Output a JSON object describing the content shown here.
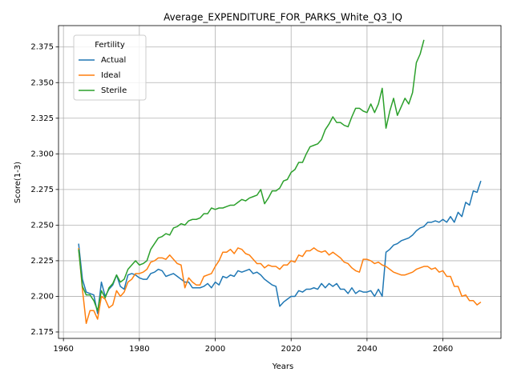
{
  "chart_data": {
    "type": "line",
    "title": "Average_EXPENDITURE_FOR_PARKS_White_Q3_IQ",
    "x_label": "Years",
    "y_label": "Score(1-3)",
    "legend_title": "Fertility",
    "legend": "upper left",
    "grid": true,
    "x": [
      1964,
      1965,
      1966,
      1967,
      1968,
      1969,
      1970,
      1971,
      1972,
      1973,
      1974,
      1975,
      1976,
      1977,
      1978,
      1979,
      1980,
      1981,
      1982,
      1983,
      1984,
      1985,
      1986,
      1987,
      1988,
      1989,
      1990,
      1991,
      1992,
      1993,
      1994,
      1995,
      1996,
      1997,
      1998,
      1999,
      2000,
      2001,
      2002,
      2003,
      2004,
      2005,
      2006,
      2007,
      2008,
      2009,
      2010,
      2011,
      2012,
      2013,
      2014,
      2015,
      2016,
      2017,
      2018,
      2019,
      2020,
      2021,
      2022,
      2023,
      2024,
      2025,
      2026,
      2027,
      2028,
      2029,
      2030,
      2031,
      2032,
      2033,
      2034,
      2035,
      2036,
      2037,
      2038,
      2039,
      2040,
      2041,
      2042,
      2043,
      2044,
      2045,
      2046,
      2047,
      2048,
      2049,
      2050,
      2051,
      2052,
      2053,
      2054,
      2055,
      2056,
      2057,
      2058,
      2059,
      2060,
      2061,
      2062,
      2063,
      2064,
      2065,
      2066,
      2067,
      2068,
      2069,
      2070
    ],
    "series": [
      {
        "name": "Actual",
        "color": "#1f77b4",
        "values": [
          2.237,
          2.212,
          2.203,
          2.202,
          2.201,
          2.188,
          2.21,
          2.2,
          2.205,
          2.208,
          2.215,
          2.207,
          2.205,
          2.215,
          2.216,
          2.215,
          2.213,
          2.212,
          2.212,
          2.216,
          2.217,
          2.219,
          2.218,
          2.214,
          2.215,
          2.216,
          2.214,
          2.212,
          2.21,
          2.21,
          2.206,
          2.206,
          2.206,
          2.207,
          2.209,
          2.206,
          2.21,
          2.208,
          2.214,
          2.213,
          2.215,
          2.214,
          2.218,
          2.217,
          2.218,
          2.219,
          2.216,
          2.217,
          2.215,
          2.212,
          2.21,
          2.208,
          2.207,
          2.193,
          2.196,
          2.198,
          2.2,
          2.2,
          2.204,
          2.203,
          2.205,
          2.205,
          2.206,
          2.205,
          2.209,
          2.206,
          2.209,
          2.207,
          2.209,
          2.205,
          2.205,
          2.202,
          2.206,
          2.202,
          2.204,
          2.203,
          2.203,
          2.204,
          2.2,
          2.205,
          2.2,
          2.231,
          2.233,
          2.236,
          2.237,
          2.239,
          2.24,
          2.241,
          2.243,
          2.246,
          2.248,
          2.249,
          2.252,
          2.252,
          2.253,
          2.252,
          2.254,
          2.252,
          2.256,
          2.252,
          2.259,
          2.256,
          2.266,
          2.264,
          2.274,
          2.273,
          2.281
        ]
      },
      {
        "name": "Ideal",
        "color": "#ff7f0e",
        "values": [
          2.234,
          2.205,
          2.181,
          2.19,
          2.19,
          2.184,
          2.2,
          2.198,
          2.192,
          2.194,
          2.204,
          2.2,
          2.203,
          2.21,
          2.212,
          2.216,
          2.216,
          2.217,
          2.219,
          2.224,
          2.225,
          2.227,
          2.227,
          2.226,
          2.229,
          2.226,
          2.223,
          2.222,
          2.206,
          2.213,
          2.21,
          2.208,
          2.208,
          2.214,
          2.215,
          2.216,
          2.221,
          2.225,
          2.231,
          2.231,
          2.233,
          2.23,
          2.234,
          2.233,
          2.23,
          2.229,
          2.226,
          2.223,
          2.223,
          2.22,
          2.222,
          2.221,
          2.221,
          2.219,
          2.222,
          2.222,
          2.225,
          2.224,
          2.229,
          2.228,
          2.232,
          2.232,
          2.234,
          2.232,
          2.231,
          2.232,
          2.229,
          2.231,
          2.229,
          2.227,
          2.224,
          2.223,
          2.22,
          2.218,
          2.217,
          2.226,
          2.226,
          2.225,
          2.223,
          2.224,
          2.222,
          2.221,
          2.219,
          2.217,
          2.216,
          2.215,
          2.215,
          2.216,
          2.217,
          2.219,
          2.22,
          2.221,
          2.221,
          2.219,
          2.22,
          2.217,
          2.218,
          2.214,
          2.214,
          2.207,
          2.207,
          2.2,
          2.201,
          2.197,
          2.197,
          2.194,
          2.196
        ]
      },
      {
        "name": "Sterile",
        "color": "#2ca02c",
        "values": [
          2.233,
          2.207,
          2.201,
          2.201,
          2.197,
          2.19,
          2.204,
          2.199,
          2.206,
          2.209,
          2.215,
          2.21,
          2.212,
          2.219,
          2.222,
          2.225,
          2.222,
          2.223,
          2.225,
          2.233,
          2.237,
          2.241,
          2.242,
          2.244,
          2.243,
          2.248,
          2.249,
          2.251,
          2.25,
          2.253,
          2.254,
          2.254,
          2.255,
          2.258,
          2.258,
          2.262,
          2.261,
          2.262,
          2.262,
          2.263,
          2.264,
          2.264,
          2.266,
          2.268,
          2.267,
          2.269,
          2.27,
          2.271,
          2.275,
          2.265,
          2.269,
          2.274,
          2.274,
          2.276,
          2.281,
          2.282,
          2.287,
          2.289,
          2.294,
          2.294,
          2.3,
          2.305,
          2.306,
          2.307,
          2.31,
          2.317,
          2.321,
          2.326,
          2.322,
          2.322,
          2.32,
          2.319,
          2.326,
          2.332,
          2.332,
          2.33,
          2.329,
          2.335,
          2.329,
          2.335,
          2.346,
          2.318,
          2.33,
          2.339,
          2.327,
          2.333,
          2.339,
          2.335,
          2.343,
          2.364,
          2.37,
          2.38,
          null,
          null,
          null,
          null,
          null,
          null,
          null,
          null,
          null,
          null,
          null,
          null,
          null,
          null,
          null
        ]
      }
    ],
    "xlim": [
      1958.7,
      2075.3
    ],
    "xticks": [
      1960,
      1980,
      2000,
      2020,
      2040,
      2060
    ],
    "ylim": [
      2.1705,
      2.39
    ],
    "yticks": [
      2.175,
      {
        "value": 2.2,
        "label": "2.200"
      },
      2.225,
      {
        "value": 2.25,
        "label": "2.250"
      },
      2.275,
      {
        "value": 2.3,
        "label": "2.300"
      },
      2.325,
      {
        "value": 2.35,
        "label": "2.350"
      },
      2.375
    ]
  }
}
